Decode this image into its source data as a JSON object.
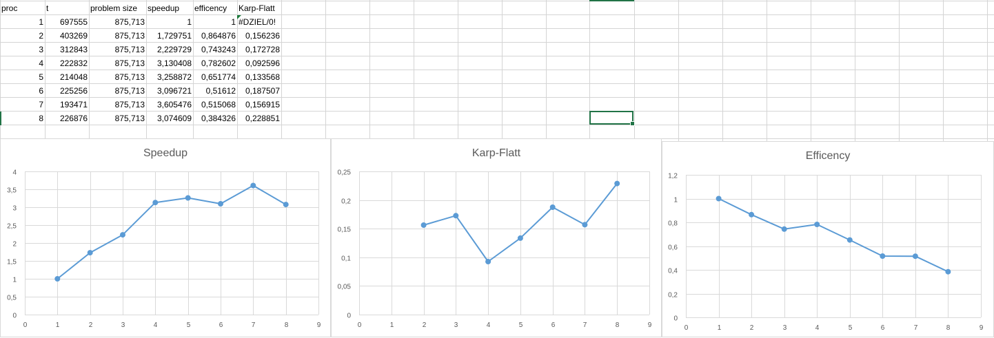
{
  "spreadsheet": {
    "headers": [
      "proc",
      "t",
      "problem size",
      "speedup",
      "efficency",
      "Karp-Flatt"
    ],
    "rows": [
      [
        "1",
        "697555",
        "875,713",
        "1",
        "1",
        "#DZIEL/0!"
      ],
      [
        "2",
        "403269",
        "875,713",
        "1,729751",
        "0,864876",
        "0,156236"
      ],
      [
        "3",
        "312843",
        "875,713",
        "2,229729",
        "0,743243",
        "0,172728"
      ],
      [
        "4",
        "222832",
        "875,713",
        "3,130408",
        "0,782602",
        "0,092596"
      ],
      [
        "5",
        "214048",
        "875,713",
        "3,258872",
        "0,651774",
        "0,133568"
      ],
      [
        "6",
        "225256",
        "875,713",
        "3,096721",
        "0,51612",
        "0,187507"
      ],
      [
        "7",
        "193471",
        "875,713",
        "3,605476",
        "0,515068",
        "0,156915"
      ],
      [
        "8",
        "226876",
        "875,713",
        "3,074609",
        "0,384326",
        "0,228851"
      ]
    ]
  },
  "chart_data": [
    {
      "type": "scatter",
      "title": "Speedup",
      "x": [
        1,
        2,
        3,
        4,
        5,
        6,
        7,
        8
      ],
      "series": [
        {
          "values": [
            1,
            1.729751,
            2.229729,
            3.130408,
            3.258872,
            3.096721,
            3.605476,
            3.074609
          ]
        }
      ],
      "xlim": [
        0,
        9
      ],
      "ylim": [
        0,
        4
      ],
      "xticks": [
        0,
        1,
        2,
        3,
        4,
        5,
        6,
        7,
        8,
        9
      ],
      "yticks": [
        0,
        0.5,
        1,
        1.5,
        2,
        2.5,
        3,
        3.5,
        4
      ],
      "ytick_labels": [
        "0",
        "0,5",
        "1",
        "1,5",
        "2",
        "2,5",
        "3",
        "3,5",
        "4"
      ],
      "grid": true,
      "color": "#5b9bd5",
      "line": "straight-with-markers"
    },
    {
      "type": "scatter",
      "title": "Karp-Flatt",
      "x": [
        2,
        3,
        4,
        5,
        6,
        7,
        8
      ],
      "series": [
        {
          "values": [
            0.156236,
            0.172728,
            0.092596,
            0.133568,
            0.187507,
            0.156915,
            0.228851
          ]
        }
      ],
      "xlim": [
        0,
        9
      ],
      "ylim": [
        0,
        0.25
      ],
      "xticks": [
        0,
        1,
        2,
        3,
        4,
        5,
        6,
        7,
        8,
        9
      ],
      "yticks": [
        0,
        0.05,
        0.1,
        0.15,
        0.2,
        0.25
      ],
      "ytick_labels": [
        "0",
        "0,05",
        "0,1",
        "0,15",
        "0,2",
        "0,25"
      ],
      "grid": true,
      "color": "#5b9bd5",
      "line": "straight-with-markers"
    },
    {
      "type": "scatter",
      "title": "Efficency",
      "x": [
        1,
        2,
        3,
        4,
        5,
        6,
        7,
        8
      ],
      "series": [
        {
          "values": [
            1,
            0.864876,
            0.743243,
            0.782602,
            0.651774,
            0.51612,
            0.515068,
            0.384326
          ]
        }
      ],
      "xlim": [
        0,
        9
      ],
      "ylim": [
        0,
        1.2
      ],
      "xticks": [
        0,
        1,
        2,
        3,
        4,
        5,
        6,
        7,
        8,
        9
      ],
      "yticks": [
        0,
        0.2,
        0.4,
        0.6,
        0.8,
        1,
        1.2
      ],
      "ytick_labels": [
        "0",
        "0,2",
        "0,4",
        "0,6",
        "0,8",
        "1",
        "1,2"
      ],
      "grid": true,
      "color": "#5b9bd5",
      "line": "straight-with-markers"
    }
  ]
}
